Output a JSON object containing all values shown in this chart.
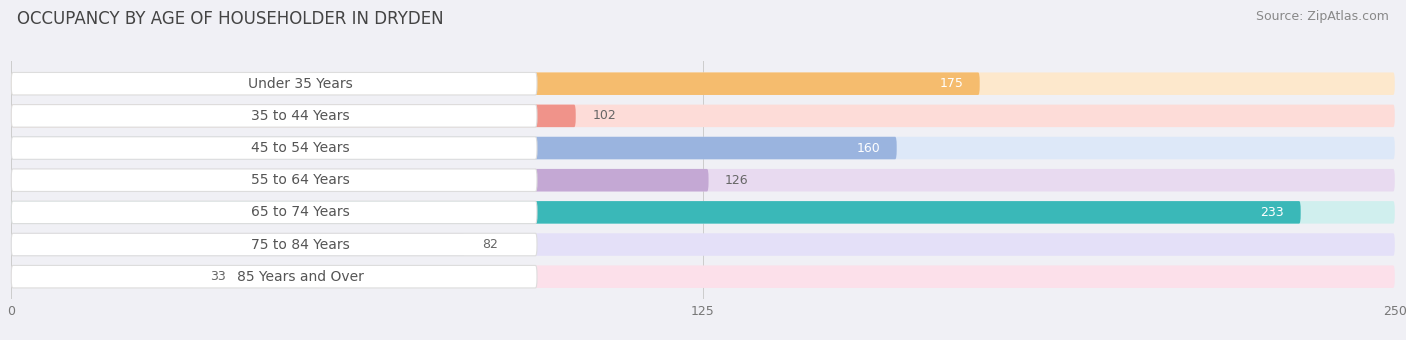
{
  "title": "OCCUPANCY BY AGE OF HOUSEHOLDER IN DRYDEN",
  "source": "Source: ZipAtlas.com",
  "categories": [
    "Under 35 Years",
    "35 to 44 Years",
    "45 to 54 Years",
    "55 to 64 Years",
    "65 to 74 Years",
    "75 to 84 Years",
    "85 Years and Over"
  ],
  "values": [
    175,
    102,
    160,
    126,
    233,
    82,
    33
  ],
  "bar_colors": [
    "#f5bc6e",
    "#f0938a",
    "#9ab4df",
    "#c4a8d4",
    "#3ab8b8",
    "#b8b4e8",
    "#f4b8c8"
  ],
  "bar_bg_colors": [
    "#fde8cc",
    "#fddcd8",
    "#dde8f8",
    "#e8daf0",
    "#d0efee",
    "#e4e0f8",
    "#fce0ea"
  ],
  "value_colors": [
    "#ffffff",
    "#777777",
    "#ffffff",
    "#777777",
    "#ffffff",
    "#777777",
    "#777777"
  ],
  "xlim": [
    0,
    250
  ],
  "xticks": [
    0,
    125,
    250
  ],
  "background_color": "#f0f0f5",
  "title_fontsize": 12,
  "source_fontsize": 9,
  "label_fontsize": 10,
  "value_fontsize": 9
}
